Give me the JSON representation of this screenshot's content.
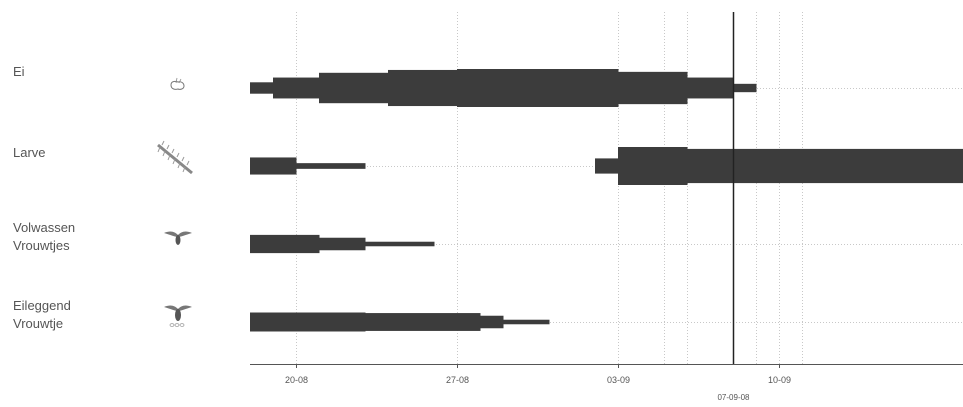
{
  "chart_data": {
    "type": "timeline",
    "stages": [
      {
        "name_lines": [
          "Ei"
        ],
        "icon": "egg-icon",
        "bands": [
          {
            "start": "2008-08-17",
            "end": "2008-08-18",
            "level": 0.3
          },
          {
            "start": "2008-08-18",
            "end": "2008-08-20",
            "level": 0.55
          },
          {
            "start": "2008-08-20",
            "end": "2008-08-23",
            "level": 0.8
          },
          {
            "start": "2008-08-23",
            "end": "2008-08-26",
            "level": 0.95
          },
          {
            "start": "2008-08-26",
            "end": "2008-09-02",
            "level": 1.0
          },
          {
            "start": "2008-09-02",
            "end": "2008-09-05",
            "level": 0.85
          },
          {
            "start": "2008-09-05",
            "end": "2008-09-07",
            "level": 0.55
          },
          {
            "start": "2008-09-07",
            "end": "2008-09-08",
            "level": 0.22
          }
        ]
      },
      {
        "name_lines": [
          "Larve"
        ],
        "icon": "larva-icon",
        "bands": [
          {
            "start": "2008-08-17",
            "end": "2008-08-19",
            "level": 0.45
          },
          {
            "start": "2008-08-19",
            "end": "2008-08-22",
            "level": 0.15
          },
          {
            "start": "2008-09-01",
            "end": "2008-09-02",
            "level": 0.4
          },
          {
            "start": "2008-09-02",
            "end": "2008-09-05",
            "level": 1.0
          },
          {
            "start": "2008-09-05",
            "end": "2008-09-17",
            "level": 0.9
          }
        ]
      },
      {
        "name_lines": [
          "Volwassen",
          "Vrouwtjes"
        ],
        "icon": "adult-female-icon",
        "bands": [
          {
            "start": "2008-08-17",
            "end": "2008-08-20",
            "level": 0.48
          },
          {
            "start": "2008-08-20",
            "end": "2008-08-22",
            "level": 0.33
          },
          {
            "start": "2008-08-22",
            "end": "2008-08-25",
            "level": 0.12
          }
        ]
      },
      {
        "name_lines": [
          "Eileggend",
          "Vrouwtje"
        ],
        "icon": "egg-laying-female-icon",
        "bands": [
          {
            "start": "2008-08-17",
            "end": "2008-08-22",
            "level": 0.5
          },
          {
            "start": "2008-08-22",
            "end": "2008-08-27",
            "level": 0.47
          },
          {
            "start": "2008-08-27",
            "end": "2008-08-28",
            "level": 0.33
          },
          {
            "start": "2008-08-28",
            "end": "2008-08-30",
            "level": 0.12
          }
        ]
      }
    ],
    "x_ticks": [
      {
        "date": "2008-08-19",
        "label": "20-08"
      },
      {
        "date": "2008-08-26",
        "label": "27-08"
      },
      {
        "date": "2008-09-02",
        "label": "03-09"
      },
      {
        "date": "2008-09-09",
        "label": "10-09"
      }
    ],
    "extra_gridlines": [
      "2008-09-04",
      "2008-09-05",
      "2008-09-08",
      "2008-09-10"
    ],
    "current_date": {
      "date": "2008-09-07",
      "label": "07-09-08"
    },
    "xlim": [
      "2008-08-17",
      "2008-09-17"
    ],
    "grid": true,
    "colors": {
      "bar": "#3c3c3c",
      "grid": "#c8c8c8",
      "axis": "#555555",
      "marker": "#222222",
      "text": "#555555"
    }
  }
}
